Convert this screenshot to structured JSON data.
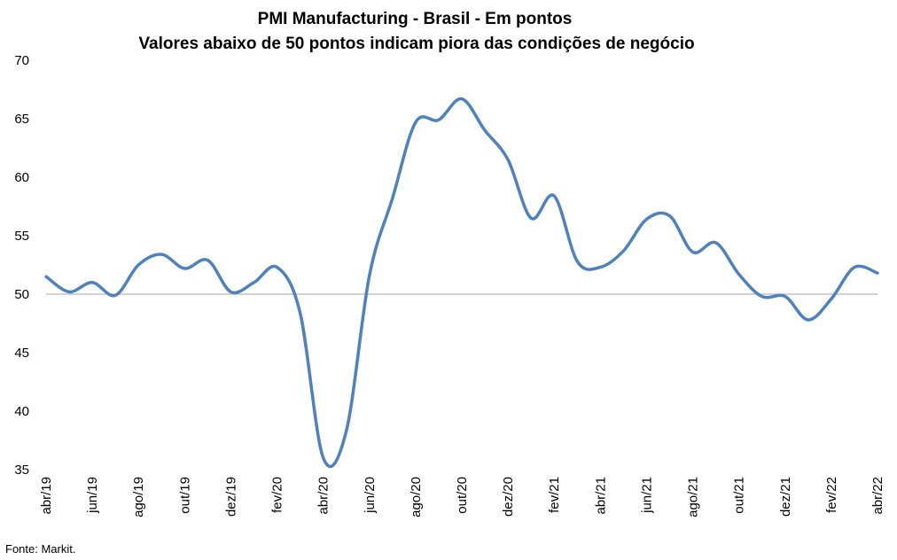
{
  "chart_data": {
    "type": "line",
    "title": "PMI Manufacturing - Brasil - Em pontos",
    "subtitle": "Valores abaixo de 50 pontos indicam piora das condições de negócio",
    "xlabel": "",
    "ylabel": "",
    "ylim": [
      35,
      70
    ],
    "yticks": [
      35,
      40,
      45,
      50,
      55,
      60,
      65,
      70
    ],
    "reference_line": 50,
    "grid": false,
    "legend": "none",
    "line_color": "#4F81BD",
    "x": [
      "abr/19",
      "mai/19",
      "jun/19",
      "jul/19",
      "ago/19",
      "set/19",
      "out/19",
      "nov/19",
      "dez/19",
      "jan/20",
      "fev/20",
      "mar/20",
      "abr/20",
      "mai/20",
      "jun/20",
      "jul/20",
      "ago/20",
      "set/20",
      "out/20",
      "nov/20",
      "dez/20",
      "jan/21",
      "fev/21",
      "mar/21",
      "abr/21",
      "mai/21",
      "jun/21",
      "jul/21",
      "ago/21",
      "set/21",
      "out/21",
      "nov/21",
      "dez/21",
      "jan/22",
      "fev/22",
      "mar/22",
      "abr/22"
    ],
    "x_tick_labels": [
      "abr/19",
      "jun/19",
      "ago/19",
      "out/19",
      "dez/19",
      "fev/20",
      "abr/20",
      "jun/20",
      "ago/20",
      "out/20",
      "dez/20",
      "fev/21",
      "abr/21",
      "jun/21",
      "ago/21",
      "out/21",
      "dez/21",
      "fev/22",
      "abr/22"
    ],
    "series": [
      {
        "values": [
          51.5,
          50.2,
          51.0,
          49.9,
          52.5,
          53.4,
          52.2,
          52.9,
          50.2,
          51.0,
          52.3,
          48.4,
          36.0,
          38.3,
          51.6,
          58.2,
          64.7,
          64.9,
          66.7,
          64.0,
          61.5,
          56.5,
          58.4,
          52.8,
          52.3,
          53.7,
          56.4,
          56.7,
          53.6,
          54.4,
          51.7,
          49.8,
          49.8,
          47.8,
          49.6,
          52.3,
          51.8
        ]
      }
    ]
  },
  "source": "Fonte: Markit."
}
